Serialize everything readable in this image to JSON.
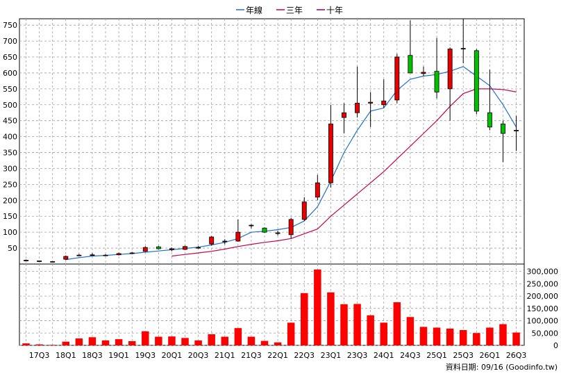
{
  "chart_data": {
    "type": "candlestick+line+bar",
    "legend": [
      {
        "name": "年線",
        "color": "#1f6fd1"
      },
      {
        "name": "三年",
        "color": "#c8004d"
      },
      {
        "name": "十年",
        "color": "#a0004d"
      }
    ],
    "price_axis": {
      "ylim": [
        0,
        770
      ],
      "ticks": [
        50,
        100,
        150,
        200,
        250,
        300,
        350,
        400,
        450,
        500,
        550,
        600,
        650,
        700,
        750
      ]
    },
    "volume_axis": {
      "ylim": [
        0,
        330000
      ],
      "ticks": [
        "0",
        "50,000",
        "100,000",
        "150,000",
        "200,000",
        "250,000",
        "300,000"
      ],
      "tick_values": [
        0,
        50000,
        100000,
        150000,
        200000,
        250000,
        300000
      ]
    },
    "x_tick_labels": [
      "17Q3",
      "18Q1",
      "18Q3",
      "19Q1",
      "19Q3",
      "20Q1",
      "20Q3",
      "21Q1",
      "21Q3",
      "22Q1",
      "22Q3",
      "23Q1",
      "23Q3",
      "24Q1",
      "24Q3",
      "25Q1",
      "25Q3",
      "26Q1",
      "26Q3"
    ],
    "periods": [
      "17Q2",
      "17Q3",
      "17Q4",
      "18Q1",
      "18Q2",
      "18Q3",
      "18Q4",
      "19Q1",
      "19Q2",
      "19Q3",
      "19Q4",
      "20Q1",
      "20Q2",
      "20Q3",
      "20Q4",
      "21Q1",
      "21Q2",
      "21Q3",
      "21Q4",
      "22Q1",
      "22Q2",
      "22Q3",
      "22Q4",
      "23Q1",
      "23Q2",
      "23Q3",
      "23Q4",
      "24Q1",
      "24Q2",
      "24Q3",
      "24Q4",
      "25Q1",
      "25Q2",
      "25Q3",
      "25Q4",
      "26Q1",
      "26Q2",
      "26Q3"
    ],
    "candles": [
      {
        "o": 12,
        "h": 14,
        "l": 10,
        "c": 12
      },
      {
        "o": 9,
        "h": 11,
        "l": 8,
        "c": 10
      },
      {
        "o": 8,
        "h": 9,
        "l": 7,
        "c": 8
      },
      {
        "o": 15,
        "h": 27,
        "l": 12,
        "c": 24
      },
      {
        "o": 27,
        "h": 32,
        "l": 25,
        "c": 28
      },
      {
        "o": 28,
        "h": 35,
        "l": 25,
        "c": 29
      },
      {
        "o": 28,
        "h": 31,
        "l": 25,
        "c": 28
      },
      {
        "o": 29,
        "h": 36,
        "l": 27,
        "c": 33
      },
      {
        "o": 33,
        "h": 38,
        "l": 31,
        "c": 35
      },
      {
        "o": 40,
        "h": 56,
        "l": 38,
        "c": 52
      },
      {
        "o": 54,
        "h": 57,
        "l": 46,
        "c": 48
      },
      {
        "o": 45,
        "h": 52,
        "l": 40,
        "c": 48
      },
      {
        "o": 46,
        "h": 58,
        "l": 44,
        "c": 55
      },
      {
        "o": 52,
        "h": 56,
        "l": 48,
        "c": 52
      },
      {
        "o": 63,
        "h": 88,
        "l": 58,
        "c": 85
      },
      {
        "o": 70,
        "h": 78,
        "l": 62,
        "c": 72
      },
      {
        "o": 72,
        "h": 140,
        "l": 70,
        "c": 100
      },
      {
        "o": 120,
        "h": 125,
        "l": 112,
        "c": 122
      },
      {
        "o": 113,
        "h": 115,
        "l": 98,
        "c": 100
      },
      {
        "o": 98,
        "h": 105,
        "l": 90,
        "c": 98
      },
      {
        "o": 92,
        "h": 145,
        "l": 80,
        "c": 140
      },
      {
        "o": 140,
        "h": 210,
        "l": 135,
        "c": 195
      },
      {
        "o": 210,
        "h": 280,
        "l": 200,
        "c": 255
      },
      {
        "o": 255,
        "h": 500,
        "l": 240,
        "c": 440
      },
      {
        "o": 460,
        "h": 505,
        "l": 410,
        "c": 475
      },
      {
        "o": 475,
        "h": 620,
        "l": 460,
        "c": 505
      },
      {
        "o": 505,
        "h": 540,
        "l": 430,
        "c": 508
      },
      {
        "o": 500,
        "h": 580,
        "l": 490,
        "c": 512
      },
      {
        "o": 515,
        "h": 660,
        "l": 505,
        "c": 650
      },
      {
        "o": 655,
        "h": 765,
        "l": 600,
        "c": 600
      },
      {
        "o": 598,
        "h": 620,
        "l": 590,
        "c": 602
      },
      {
        "o": 605,
        "h": 710,
        "l": 520,
        "c": 540
      },
      {
        "o": 550,
        "h": 680,
        "l": 450,
        "c": 675
      },
      {
        "o": 675,
        "h": 770,
        "l": 630,
        "c": 677
      },
      {
        "o": 670,
        "h": 675,
        "l": 470,
        "c": 480
      },
      {
        "o": 475,
        "h": 610,
        "l": 420,
        "c": 430
      },
      {
        "o": 440,
        "h": 450,
        "l": 320,
        "c": 410
      },
      {
        "o": 420,
        "h": 465,
        "l": 355,
        "c": 418
      }
    ],
    "series": [
      {
        "name": "年線",
        "values": [
          null,
          null,
          null,
          14,
          20,
          25,
          27,
          30,
          33,
          37,
          41,
          45,
          49,
          53,
          60,
          68,
          80,
          100,
          103,
          108,
          115,
          135,
          180,
          260,
          350,
          420,
          480,
          490,
          545,
          580,
          590,
          595,
          605,
          620,
          590,
          560,
          500,
          430
        ]
      },
      {
        "name": "三年",
        "values": [
          null,
          null,
          null,
          null,
          null,
          null,
          null,
          null,
          null,
          null,
          null,
          25,
          30,
          35,
          40,
          47,
          55,
          62,
          68,
          73,
          80,
          95,
          110,
          150,
          185,
          220,
          255,
          290,
          330,
          370,
          410,
          450,
          495,
          535,
          550,
          550,
          548,
          540
        ]
      }
    ],
    "volume": [
      8000,
      4000,
      2000,
      15000,
      28000,
      33000,
      20000,
      25000,
      17000,
      57000,
      35000,
      36000,
      30000,
      20000,
      45000,
      35000,
      70000,
      35000,
      18000,
      12000,
      92000,
      212000,
      308000,
      215000,
      167000,
      168000,
      122000,
      92000,
      175000,
      115000,
      75000,
      72000,
      68000,
      62000,
      50000,
      72000,
      86000,
      52000
    ],
    "date_note": "資料日期: 09/16  (Goodinfo.tw)",
    "colors": {
      "up": "#e60000",
      "down": "#00c000",
      "volume": "#ff0000",
      "grid": "#a0a0a0",
      "year_line": "#1f6fd1",
      "three_year_line": "#c8004d"
    }
  }
}
